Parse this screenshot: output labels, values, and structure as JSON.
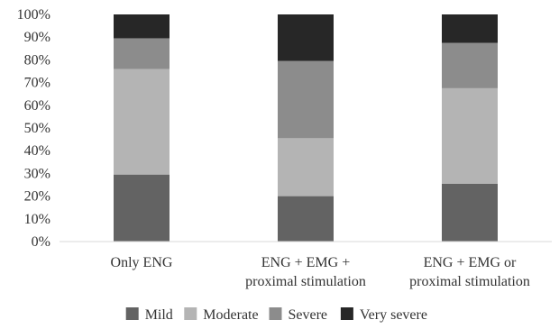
{
  "chart_data": {
    "type": "bar",
    "stacked": true,
    "percent": true,
    "categories": [
      [
        "Only ENG"
      ],
      [
        "ENG + EMG +",
        "proximal stimulation"
      ],
      [
        "ENG + EMG or",
        "proximal stimulation"
      ]
    ],
    "series": [
      {
        "name": "Mild",
        "color": "#636363",
        "values": [
          29.5,
          20,
          25.5
        ]
      },
      {
        "name": "Moderate",
        "color": "#b4b4b4",
        "values": [
          46.5,
          25.5,
          42
        ]
      },
      {
        "name": "Severe",
        "color": "#8c8c8c",
        "values": [
          13.5,
          34,
          20
        ]
      },
      {
        "name": "Very severe",
        "color": "#272727",
        "values": [
          10.5,
          20.5,
          12.5
        ]
      }
    ],
    "y_ticks": [
      "0%",
      "10%",
      "20%",
      "30%",
      "40%",
      "50%",
      "60%",
      "70%",
      "80%",
      "90%",
      "100%"
    ],
    "ylim": [
      0,
      100
    ],
    "grid": false,
    "legend_position": "bottom",
    "title": "",
    "xlabel": "",
    "ylabel": ""
  }
}
